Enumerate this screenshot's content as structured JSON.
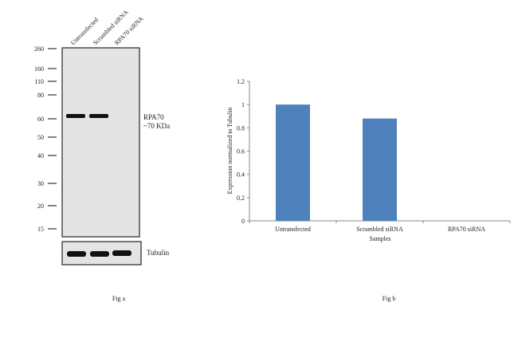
{
  "fig_a": {
    "caption": "Fig a",
    "lanes": [
      "Untransfected",
      "Scrambled siRNA",
      "RPA70 siRNA"
    ],
    "markers": [
      "260",
      "160",
      "110",
      "80",
      "60",
      "50",
      "40",
      "30",
      "20",
      "15"
    ],
    "band_label_1": "RPA70",
    "band_label_2": "~70 KDa",
    "loading_control": "Tubulin",
    "band_presence": [
      true,
      true,
      false
    ],
    "membrane_color": "#e4e4e4",
    "band_color": "#111111"
  },
  "fig_b": {
    "caption": "Fig b"
  },
  "chart_data": {
    "type": "bar",
    "categories": [
      "Untransfected",
      "Scrambled siRNA",
      "RPA70 siRNA"
    ],
    "values": [
      1.0,
      0.88,
      0.0
    ],
    "xlabel": "Samples",
    "ylabel": "Expression  normalized to Tubulin",
    "ylim": [
      0,
      1.2
    ],
    "yticks": [
      "0",
      "0.2",
      "0.4",
      "0.6",
      "0.8",
      "1",
      "1.2"
    ],
    "grid": false,
    "bar_color": "#4f81bd"
  }
}
